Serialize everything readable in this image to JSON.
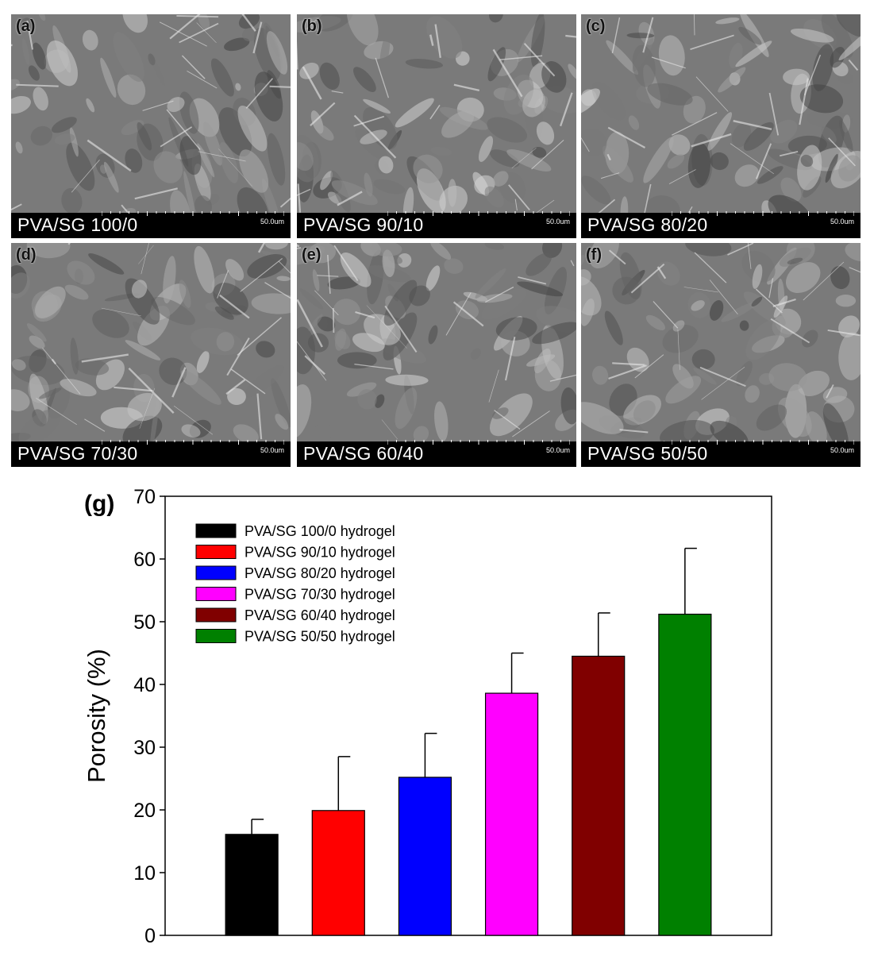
{
  "panels": [
    {
      "letter": "(a)",
      "caption": "PVA/SG 100/0",
      "scale": "50.0um",
      "icon": "sem-micrograph-icon"
    },
    {
      "letter": "(b)",
      "caption": "PVA/SG 90/10",
      "scale": "50.0um",
      "icon": "sem-micrograph-icon"
    },
    {
      "letter": "(c)",
      "caption": "PVA/SG 80/20",
      "scale": "50.0um",
      "icon": "sem-micrograph-icon"
    },
    {
      "letter": "(d)",
      "caption": "PVA/SG 70/30",
      "scale": "50.0um",
      "icon": "sem-micrograph-icon"
    },
    {
      "letter": "(e)",
      "caption": "PVA/SG 60/40",
      "scale": "50.0um",
      "icon": "sem-micrograph-icon"
    },
    {
      "letter": "(f)",
      "caption": "PVA/SG 50/50",
      "scale": "50.0um",
      "icon": "sem-micrograph-icon"
    }
  ],
  "chart_data": {
    "type": "bar",
    "panel_label": "(g)",
    "title": "",
    "xlabel": "",
    "ylabel": "Porosity (%)",
    "ylim": [
      0,
      70
    ],
    "yticks": [
      0,
      10,
      20,
      30,
      40,
      50,
      60,
      70
    ],
    "grid": false,
    "legend_position": "top-left",
    "categories": [
      "PVA/SG 100/0 hydrogel",
      "PVA/SG 90/10 hydrogel",
      "PVA/SG 80/20 hydrogel",
      "PVA/SG 70/30 hydrogel",
      "PVA/SG 60/40 hydrogel",
      "PVA/SG 50/50 hydrogel"
    ],
    "values": [
      16.1,
      19.9,
      25.2,
      38.6,
      44.5,
      51.2
    ],
    "error_upper": [
      2.4,
      8.6,
      7.0,
      6.4,
      6.9,
      10.5
    ],
    "colors": [
      "#000000",
      "#ff0000",
      "#0000ff",
      "#ff00ff",
      "#800000",
      "#008000"
    ]
  }
}
